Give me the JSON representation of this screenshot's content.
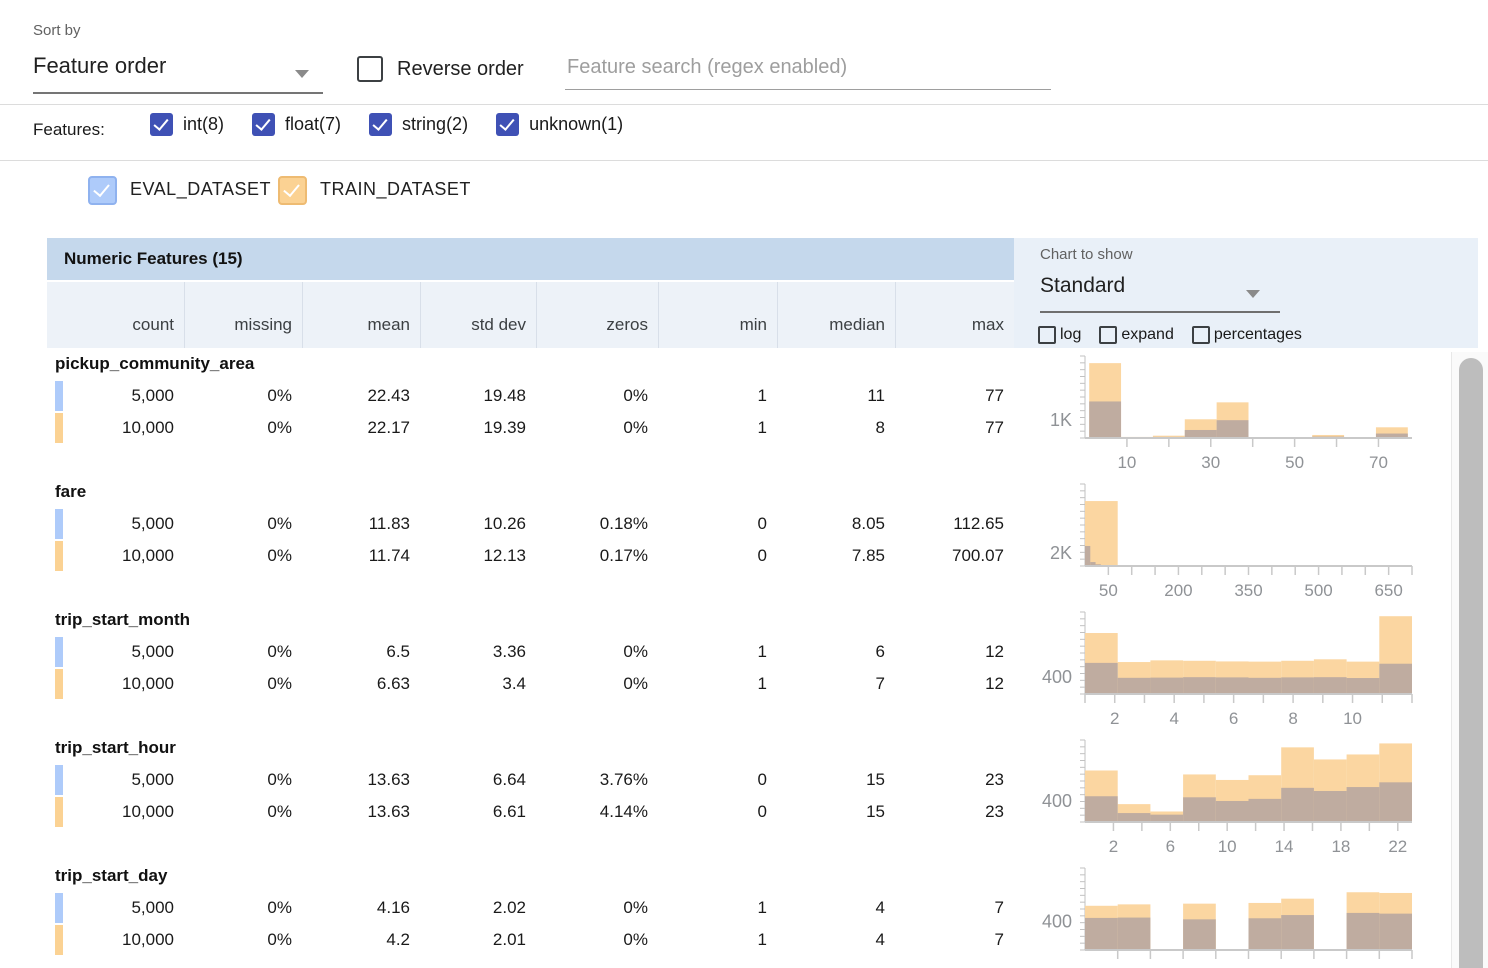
{
  "colors": {
    "indigo": "#3f51b5",
    "eval": "#aecbfa",
    "eval_border": "#8fb2ef",
    "train": "#fbd293",
    "train_border": "#eebb72",
    "train_bar": "#fbd6a1",
    "eval_bar": "#bfaca0",
    "table_header_bg": "#c5d8ec",
    "subheader_bg": "#edf2f8",
    "panel_bg": "#e9f0f8"
  },
  "sort_bar": {
    "sort_by_label": "Sort by",
    "sort_value": "Feature order",
    "reverse_label": "Reverse order",
    "search_placeholder": "Feature search (regex enabled)"
  },
  "features_filter": {
    "label": "Features:",
    "items": [
      {
        "label": "int(8)",
        "checked": true
      },
      {
        "label": "float(7)",
        "checked": true
      },
      {
        "label": "string(2)",
        "checked": true
      },
      {
        "label": "unknown(1)",
        "checked": true
      }
    ]
  },
  "datasets": [
    {
      "name": "EVAL_DATASET",
      "checked": true
    },
    {
      "name": "TRAIN_DATASET",
      "checked": true
    }
  ],
  "table": {
    "title": "Numeric Features (15)",
    "columns": [
      "count",
      "missing",
      "mean",
      "std dev",
      "zeros",
      "min",
      "median",
      "max"
    ]
  },
  "chart_controls": {
    "label": "Chart to show",
    "selected": "Standard",
    "toggles": [
      {
        "label": "log",
        "checked": false
      },
      {
        "label": "expand",
        "checked": false
      },
      {
        "label": "percentages",
        "checked": false
      }
    ]
  },
  "features": [
    {
      "name": "pickup_community_area",
      "rows": [
        {
          "dataset": "EVAL_DATASET",
          "values": [
            "5,000",
            "0%",
            "22.43",
            "19.48",
            "0%",
            "1",
            "11",
            "77"
          ]
        },
        {
          "dataset": "TRAIN_DATASET",
          "values": [
            "10,000",
            "0%",
            "22.17",
            "19.39",
            "0%",
            "1",
            "8",
            "77"
          ]
        }
      ]
    },
    {
      "name": "fare",
      "rows": [
        {
          "dataset": "EVAL_DATASET",
          "values": [
            "5,000",
            "0%",
            "11.83",
            "10.26",
            "0.18%",
            "0",
            "8.05",
            "112.65"
          ]
        },
        {
          "dataset": "TRAIN_DATASET",
          "values": [
            "10,000",
            "0%",
            "11.74",
            "12.13",
            "0.17%",
            "0",
            "7.85",
            "700.07"
          ]
        }
      ]
    },
    {
      "name": "trip_start_month",
      "rows": [
        {
          "dataset": "EVAL_DATASET",
          "values": [
            "5,000",
            "0%",
            "6.5",
            "3.36",
            "0%",
            "1",
            "6",
            "12"
          ]
        },
        {
          "dataset": "TRAIN_DATASET",
          "values": [
            "10,000",
            "0%",
            "6.63",
            "3.4",
            "0%",
            "1",
            "7",
            "12"
          ]
        }
      ]
    },
    {
      "name": "trip_start_hour",
      "rows": [
        {
          "dataset": "EVAL_DATASET",
          "values": [
            "5,000",
            "0%",
            "13.63",
            "6.64",
            "3.76%",
            "0",
            "15",
            "23"
          ]
        },
        {
          "dataset": "TRAIN_DATASET",
          "values": [
            "10,000",
            "0%",
            "13.63",
            "6.61",
            "4.14%",
            "0",
            "15",
            "23"
          ]
        }
      ]
    },
    {
      "name": "trip_start_day",
      "rows": [
        {
          "dataset": "EVAL_DATASET",
          "values": [
            "5,000",
            "0%",
            "4.16",
            "2.02",
            "0%",
            "1",
            "4",
            "7"
          ]
        },
        {
          "dataset": "TRAIN_DATASET",
          "values": [
            "10,000",
            "0%",
            "4.2",
            "2.01",
            "0%",
            "1",
            "4",
            "7"
          ]
        }
      ]
    }
  ],
  "chart_data": [
    {
      "type": "bar",
      "feature": "pickup_community_area",
      "ylabel": {
        "text": "1K",
        "value": 1000
      },
      "ymax": 4600,
      "x": {
        "min": 0,
        "max": 78,
        "labeled_ticks": [
          10,
          30,
          50,
          70
        ],
        "minor_ticks": [
          20,
          40,
          60
        ]
      },
      "series": [
        {
          "name": "TRAIN_DATASET",
          "bin_start": 1,
          "bin_width": 7.6,
          "values": [
            4200,
            60,
            130,
            1050,
            2000,
            25,
            20,
            170,
            30,
            600
          ]
        },
        {
          "name": "EVAL_DATASET",
          "bin_start": 1,
          "bin_width": 7.6,
          "values": [
            2050,
            30,
            60,
            450,
            1000,
            12,
            10,
            80,
            15,
            250
          ]
        }
      ]
    },
    {
      "type": "bar",
      "feature": "fare",
      "ylabel": {
        "text": "2K",
        "value": 2000
      },
      "ymax": 12500,
      "x": {
        "min": 0,
        "max": 700,
        "labeled_ticks": [
          50,
          200,
          350,
          500,
          650
        ],
        "minor_ticks": [
          100,
          150,
          250,
          300,
          400,
          450,
          550,
          600,
          700
        ]
      },
      "series": [
        {
          "name": "TRAIN_DATASET",
          "bin_start": 0,
          "bin_width": 70,
          "values": [
            9900,
            45,
            20,
            12,
            6,
            4,
            3,
            2,
            2,
            6
          ]
        },
        {
          "name": "EVAL_DATASET",
          "bin_start": 0,
          "bin_width": 11.3,
          "values": [
            3050,
            600,
            260,
            130,
            60,
            35,
            20,
            12,
            6,
            6
          ]
        }
      ]
    },
    {
      "type": "bar",
      "feature": "trip_start_month",
      "ylabel": {
        "text": "400",
        "value": 400
      },
      "ymax": 1950,
      "x": {
        "min": 1,
        "max": 12,
        "labeled_ticks": [
          2,
          4,
          6,
          8,
          10
        ],
        "minor_ticks": [
          1,
          3,
          5,
          7,
          9,
          11,
          12
        ]
      },
      "series": [
        {
          "name": "TRAIN_DATASET",
          "bin_start": 1,
          "bin_width": 1.1,
          "values": [
            1450,
            760,
            800,
            790,
            775,
            770,
            790,
            825,
            770,
            1850
          ]
        },
        {
          "name": "EVAL_DATASET",
          "bin_start": 1,
          "bin_width": 1.1,
          "values": [
            740,
            385,
            390,
            400,
            395,
            385,
            395,
            400,
            380,
            720
          ]
        }
      ]
    },
    {
      "type": "bar",
      "feature": "trip_start_hour",
      "ylabel": {
        "text": "400",
        "value": 400
      },
      "ymax": 1560,
      "x": {
        "min": 0,
        "max": 23,
        "labeled_ticks": [
          2,
          6,
          10,
          14,
          18,
          22
        ],
        "minor_ticks": [
          4,
          8,
          12,
          16,
          20
        ]
      },
      "series": [
        {
          "name": "TRAIN_DATASET",
          "bin_start": 0,
          "bin_width": 2.3,
          "values": [
            980,
            340,
            200,
            905,
            800,
            890,
            1420,
            1190,
            1285,
            1495
          ]
        },
        {
          "name": "EVAL_DATASET",
          "bin_start": 0,
          "bin_width": 2.3,
          "values": [
            490,
            170,
            140,
            470,
            400,
            440,
            650,
            590,
            665,
            755
          ]
        }
      ]
    },
    {
      "type": "bar",
      "feature": "trip_start_day",
      "ylabel": {
        "text": "400",
        "value": 400
      },
      "ymax": 1150,
      "x": {
        "min": 1,
        "max": 7,
        "labeled_ticks": [],
        "minor_ticks": [
          1.6,
          2.2,
          2.8,
          3.4,
          4.0,
          4.6,
          5.2,
          5.8,
          6.4,
          7.0
        ]
      },
      "series": [
        {
          "name": "TRAIN_DATASET",
          "bin_start": 1,
          "bin_width": 0.6,
          "values": [
            620,
            640,
            0,
            650,
            0,
            660,
            720,
            0,
            810,
            800
          ]
        },
        {
          "name": "EVAL_DATASET",
          "bin_start": 1,
          "bin_width": 0.6,
          "values": [
            450,
            455,
            0,
            430,
            0,
            445,
            490,
            0,
            520,
            510
          ]
        }
      ]
    }
  ]
}
